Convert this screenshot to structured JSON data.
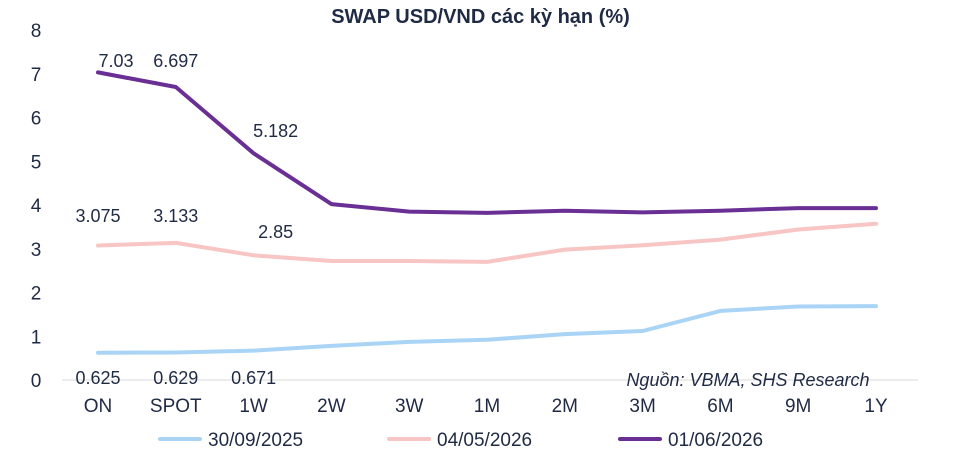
{
  "chart_data": {
    "type": "line",
    "title": "SWAP USD/VND các kỳ hạn (%)",
    "xlabel": "",
    "ylabel": "",
    "categories": [
      "ON",
      "SPOT",
      "1W",
      "2W",
      "3W",
      "1M",
      "2M",
      "3M",
      "6M",
      "9M",
      "1Y"
    ],
    "ylim": [
      0,
      8
    ],
    "yticks": [
      "0",
      "1",
      "2",
      "3",
      "4",
      "5",
      "6",
      "7",
      "8"
    ],
    "grid": false,
    "legend_position": "bottom",
    "source": "Nguồn: VBMA, SHS Research",
    "series": [
      {
        "name": "30/09/2025",
        "color": "#a9d4f5",
        "values": [
          0.625,
          0.629,
          0.671,
          0.78,
          0.87,
          0.92,
          1.05,
          1.12,
          1.58,
          1.68,
          1.69
        ],
        "labels": [
          "0.625",
          "0.629",
          "0.671",
          "",
          "",
          "",
          "",
          "",
          "",
          "",
          ""
        ]
      },
      {
        "name": "04/05/2026",
        "color": "#f7c6c4",
        "values": [
          3.075,
          3.133,
          2.85,
          2.72,
          2.72,
          2.7,
          2.98,
          3.08,
          3.21,
          3.44,
          3.57
        ],
        "labels": [
          "3.075",
          "3.133",
          "2.85",
          "",
          "",
          "",
          "",
          "",
          "",
          "",
          ""
        ]
      },
      {
        "name": "01/06/2026",
        "color": "#6a2f94",
        "values": [
          7.03,
          6.697,
          5.182,
          4.02,
          3.85,
          3.82,
          3.87,
          3.83,
          3.87,
          3.93,
          3.93
        ],
        "labels": [
          "7.03",
          "6.697",
          "5.182",
          "",
          "",
          "",
          "",
          "",
          "",
          "",
          ""
        ]
      }
    ]
  }
}
